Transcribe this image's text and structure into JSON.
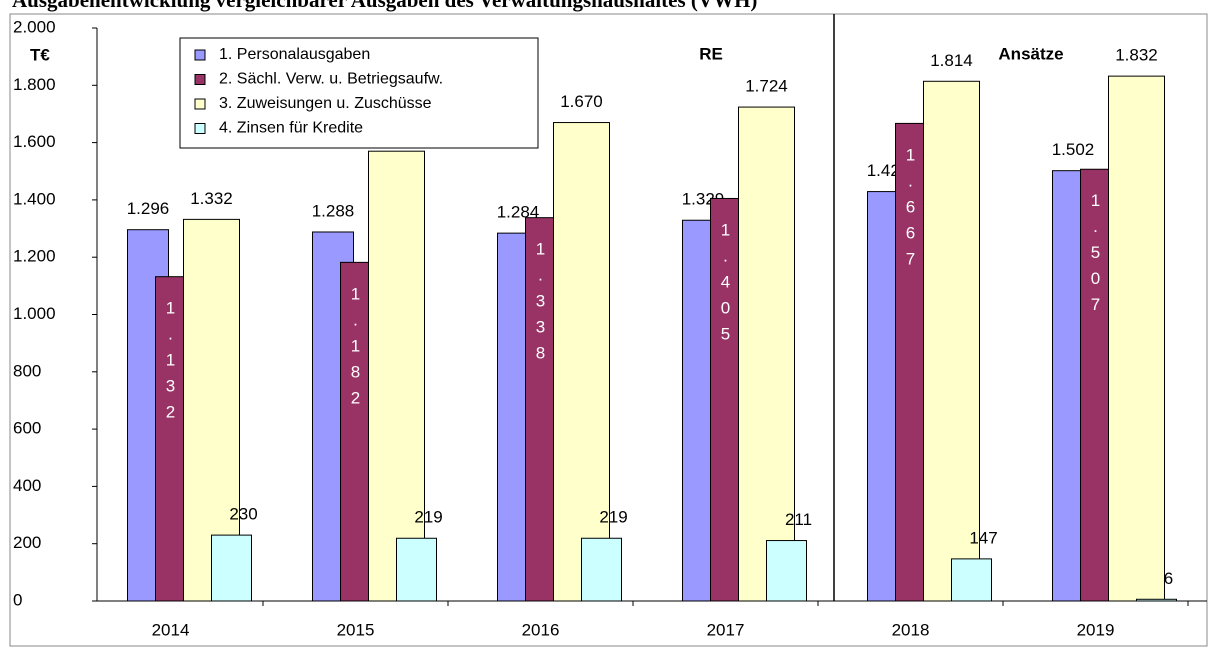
{
  "chart_data": {
    "type": "bar",
    "title": "Ausgabenentwicklung vergleichbarer Ausgaben des Verwaltungshaushaltes (VWH)",
    "annotations": [
      "T€",
      "RE",
      "Ansätze"
    ],
    "categories": [
      "2014",
      "2015",
      "2016",
      "2017",
      "2018",
      "2019"
    ],
    "series": [
      {
        "name": "1. Personalausgaben",
        "color": "#9999ff",
        "values": [
          1296,
          1288,
          1284,
          1329,
          1429,
          1502
        ],
        "value_labels": [
          "1.296",
          "1.288",
          "1.284",
          "1.329",
          "1.429",
          "1.502"
        ]
      },
      {
        "name": "2. Sächl. Verw. u. Betriegsaufw.",
        "color": "#993366",
        "values": [
          1132,
          1182,
          1338,
          1405,
          1667,
          1507
        ],
        "value_labels": [
          "1.132",
          "1.182",
          "1.338",
          "1.405",
          "1.667",
          "1.507"
        ]
      },
      {
        "name": "3. Zuweisungen u. Zuschüsse",
        "color": "#ffffcc",
        "values": [
          1332,
          1570,
          1670,
          1724,
          1814,
          1832
        ],
        "value_labels": [
          "1.332",
          null,
          "1.670",
          "1.724",
          "1.814",
          "1.832"
        ]
      },
      {
        "name": "4. Zinsen für Kredite",
        "color": "#ccffff",
        "values": [
          230,
          219,
          219,
          211,
          147,
          6
        ]
      }
    ],
    "ylim": [
      0,
      2000
    ],
    "yticks": [
      0,
      200,
      400,
      600,
      800,
      {
        "value": 1000,
        "label": "1.000"
      },
      {
        "value": 1200,
        "label": "1.200"
      },
      {
        "value": 1400,
        "label": "1.400"
      },
      {
        "value": 1600,
        "label": "1.600"
      },
      {
        "value": 1800,
        "label": "1.800"
      },
      {
        "value": 2000,
        "label": "2.000"
      }
    ],
    "grid": false,
    "legend": "upper left"
  }
}
